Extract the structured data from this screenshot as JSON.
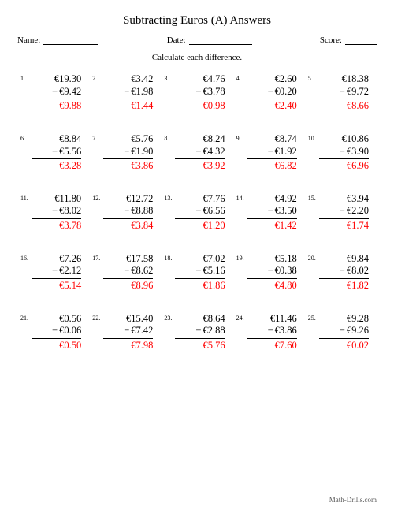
{
  "title": "Subtracting Euros (A) Answers",
  "labels": {
    "name": "Name:",
    "date": "Date:",
    "score": "Score:"
  },
  "instruction": "Calculate each difference.",
  "footer": "Math-Drills.com",
  "currency": "€",
  "minus": "−",
  "answer_color": "#ff0000",
  "background_color": "#ffffff",
  "text_color": "#000000",
  "columns": 5,
  "rows": 5,
  "problems": [
    {
      "n": "1.",
      "a": "19.30",
      "b": "9.42",
      "ans": "9.88"
    },
    {
      "n": "2.",
      "a": "3.42",
      "b": "1.98",
      "ans": "1.44"
    },
    {
      "n": "3.",
      "a": "4.76",
      "b": "3.78",
      "ans": "0.98"
    },
    {
      "n": "4.",
      "a": "2.60",
      "b": "0.20",
      "ans": "2.40"
    },
    {
      "n": "5.",
      "a": "18.38",
      "b": "9.72",
      "ans": "8.66"
    },
    {
      "n": "6.",
      "a": "8.84",
      "b": "5.56",
      "ans": "3.28"
    },
    {
      "n": "7.",
      "a": "5.76",
      "b": "1.90",
      "ans": "3.86"
    },
    {
      "n": "8.",
      "a": "8.24",
      "b": "4.32",
      "ans": "3.92"
    },
    {
      "n": "9.",
      "a": "8.74",
      "b": "1.92",
      "ans": "6.82"
    },
    {
      "n": "10.",
      "a": "10.86",
      "b": "3.90",
      "ans": "6.96"
    },
    {
      "n": "11.",
      "a": "11.80",
      "b": "8.02",
      "ans": "3.78"
    },
    {
      "n": "12.",
      "a": "12.72",
      "b": "8.88",
      "ans": "3.84"
    },
    {
      "n": "13.",
      "a": "7.76",
      "b": "6.56",
      "ans": "1.20"
    },
    {
      "n": "14.",
      "a": "4.92",
      "b": "3.50",
      "ans": "1.42"
    },
    {
      "n": "15.",
      "a": "3.94",
      "b": "2.20",
      "ans": "1.74"
    },
    {
      "n": "16.",
      "a": "7.26",
      "b": "2.12",
      "ans": "5.14"
    },
    {
      "n": "17.",
      "a": "17.58",
      "b": "8.62",
      "ans": "8.96"
    },
    {
      "n": "18.",
      "a": "7.02",
      "b": "5.16",
      "ans": "1.86"
    },
    {
      "n": "19.",
      "a": "5.18",
      "b": "0.38",
      "ans": "4.80"
    },
    {
      "n": "20.",
      "a": "9.84",
      "b": "8.02",
      "ans": "1.82"
    },
    {
      "n": "21.",
      "a": "0.56",
      "b": "0.06",
      "ans": "0.50"
    },
    {
      "n": "22.",
      "a": "15.40",
      "b": "7.42",
      "ans": "7.98"
    },
    {
      "n": "23.",
      "a": "8.64",
      "b": "2.88",
      "ans": "5.76"
    },
    {
      "n": "24.",
      "a": "11.46",
      "b": "3.86",
      "ans": "7.60"
    },
    {
      "n": "25.",
      "a": "9.28",
      "b": "9.26",
      "ans": "0.02"
    }
  ]
}
